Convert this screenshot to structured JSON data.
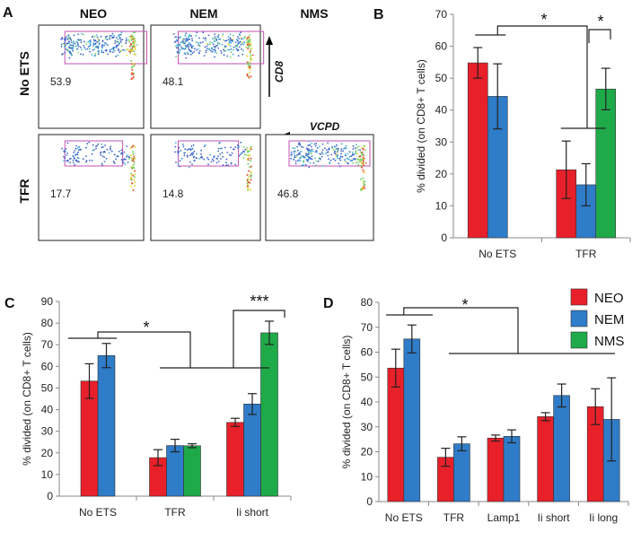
{
  "colors": {
    "NEO": "#e8202a",
    "NEM": "#2f7cc8",
    "NMS": "#1faa4a"
  },
  "legend": [
    "NEO",
    "NEM",
    "NMS"
  ],
  "flow": {
    "panel_label": "A",
    "columns": [
      "NEO",
      "NEM",
      "NMS"
    ],
    "rows": [
      "No ETS",
      "TFR"
    ],
    "axis_cd8": "CD8",
    "axis_vcpd": "VCPD",
    "values": [
      [
        "53.9",
        "48.1",
        ""
      ],
      [
        "17.7",
        "14.8",
        "46.8"
      ]
    ]
  },
  "chart_data": [
    {
      "panel": "B",
      "type": "bar",
      "ylabel": "% divided (on CD8+ T cells)",
      "ylim": [
        0,
        70
      ],
      "yticks": [
        0,
        10,
        20,
        30,
        40,
        50,
        60,
        70
      ],
      "categories": [
        "No ETS",
        "TFR"
      ],
      "series": [
        {
          "name": "NEO",
          "values": [
            54.8,
            21.3
          ],
          "errors": [
            4.8,
            9.0
          ]
        },
        {
          "name": "NEM",
          "values": [
            44.3,
            16.6
          ],
          "errors": [
            10.2,
            6.6
          ]
        },
        {
          "name": "NMS",
          "values": [
            null,
            46.6
          ],
          "errors": [
            null,
            6.5
          ]
        }
      ],
      "significance": [
        "*",
        "*"
      ]
    },
    {
      "panel": "C",
      "type": "bar",
      "ylabel": "% divided (on CD8+ T cells)",
      "ylim": [
        0,
        90
      ],
      "yticks": [
        0,
        10,
        20,
        30,
        40,
        50,
        60,
        70,
        80,
        90
      ],
      "categories": [
        "No ETS",
        "TFR",
        "Ii short"
      ],
      "series": [
        {
          "name": "NEO",
          "values": [
            53.2,
            17.8,
            34.1
          ],
          "errors": [
            8.0,
            3.7,
            1.9
          ]
        },
        {
          "name": "NEM",
          "values": [
            65.0,
            23.4,
            42.6
          ],
          "errors": [
            5.6,
            2.9,
            4.8
          ]
        },
        {
          "name": "NMS",
          "values": [
            null,
            23.3,
            75.5
          ],
          "errors": [
            null,
            0.9,
            5.4
          ]
        }
      ],
      "significance": [
        "*",
        "***"
      ]
    },
    {
      "panel": "D",
      "type": "bar",
      "ylabel": "% divided (on CD8+ T cells)",
      "ylim": [
        0,
        80
      ],
      "yticks": [
        0,
        10,
        20,
        30,
        40,
        50,
        60,
        70,
        80
      ],
      "categories": [
        "No ETS",
        "TFR",
        "Lamp1",
        "Ii short",
        "Ii long"
      ],
      "series": [
        {
          "name": "NEO",
          "values": [
            53.6,
            17.8,
            25.5,
            34.1,
            38.1
          ],
          "errors": [
            7.6,
            3.6,
            1.2,
            1.6,
            7.2
          ]
        },
        {
          "name": "NEM",
          "values": [
            65.3,
            23.2,
            26.2,
            42.6,
            33.0
          ],
          "errors": [
            5.6,
            2.8,
            2.6,
            4.6,
            16.7
          ]
        }
      ],
      "significance": [
        "*"
      ]
    }
  ]
}
